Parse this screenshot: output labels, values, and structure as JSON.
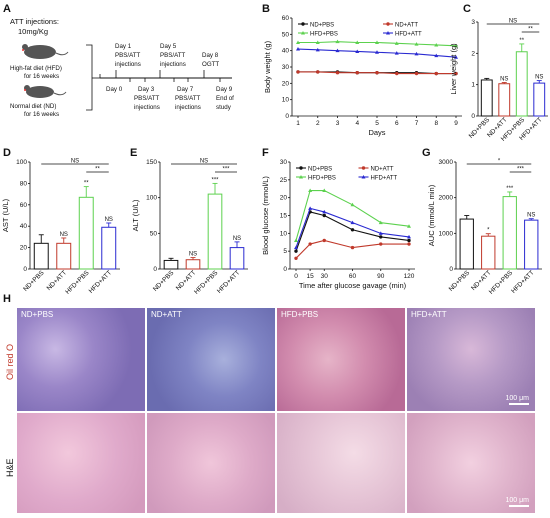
{
  "panelA": {
    "letter": "A",
    "injection_title": "ATT injections:",
    "dose": "10mg/Kg",
    "hfd_line1": "High-fat diet (HFD)",
    "hfd_line2": "for 16 weeks",
    "nd_line1": "Normal diet (ND)",
    "nd_line2": "for 16 weeks",
    "day1": [
      "Day 1",
      "PBS/ATT",
      "injections"
    ],
    "day5": [
      "Day 5",
      "PBS/ATT",
      "injections"
    ],
    "day8": [
      "Day 8",
      "OGTT"
    ],
    "day0": "Day 0",
    "day3": [
      "Day 3",
      "PBS/ATT",
      "injections"
    ],
    "day7": [
      "Day 7",
      "PBS/ATT",
      "injections"
    ],
    "day9": [
      "Day 9",
      "End of",
      "study"
    ]
  },
  "colors": {
    "nd_pbs": "#111111",
    "nd_att": "#c0392b",
    "hfd_pbs": "#5cd14e",
    "hfd_att": "#2a2ad1"
  },
  "chart_data": [
    {
      "panel": "B",
      "type": "line",
      "xlabel": "Days",
      "ylabel": "Body weight (g)",
      "x": [
        1,
        2,
        3,
        4,
        5,
        6,
        7,
        8,
        9
      ],
      "ylim": [
        0,
        60
      ],
      "yticks": [
        0,
        10,
        20,
        30,
        40,
        50,
        60
      ],
      "series": [
        {
          "name": "ND+PBS",
          "values": [
            27,
            27,
            27,
            26.5,
            26.5,
            26.5,
            26.5,
            26,
            26
          ]
        },
        {
          "name": "ND+ATT",
          "values": [
            27,
            27,
            26.5,
            26.5,
            26.5,
            26,
            26,
            26,
            26
          ]
        },
        {
          "name": "HFD+PBS",
          "values": [
            45,
            45,
            45.5,
            45,
            45,
            44.5,
            44,
            43.5,
            43
          ]
        },
        {
          "name": "HFD+ATT",
          "values": [
            41,
            40.5,
            40,
            39.5,
            39,
            38.5,
            38,
            37,
            36
          ]
        }
      ]
    },
    {
      "panel": "C",
      "type": "bar",
      "ylabel": "Liver weight (g)",
      "categories": [
        "ND+PBS",
        "ND+ATT",
        "HFD+PBS",
        "HFD+ATT"
      ],
      "values": [
        1.15,
        1.03,
        2.05,
        1.05
      ],
      "errors": [
        0.05,
        0.04,
        0.25,
        0.08
      ],
      "ylim": [
        0,
        3
      ],
      "yticks": [
        0,
        1,
        2,
        3
      ],
      "marks": [
        "",
        "NS",
        "**",
        "NS"
      ],
      "brackets": [
        {
          "label": "NS"
        },
        {
          "label": "**"
        }
      ]
    },
    {
      "panel": "D",
      "type": "bar",
      "ylabel": "AST (U/L)",
      "categories": [
        "ND+PBS",
        "ND+ATT",
        "HFD+PBS",
        "HFD+ATT"
      ],
      "values": [
        24,
        24,
        67,
        39
      ],
      "errors": [
        8,
        5,
        10,
        4
      ],
      "ylim": [
        0,
        100
      ],
      "yticks": [
        0,
        20,
        40,
        60,
        80,
        100
      ],
      "marks": [
        "",
        "NS",
        "**",
        "NS"
      ],
      "brackets": [
        {
          "label": "NS"
        },
        {
          "label": "**"
        }
      ]
    },
    {
      "panel": "E",
      "type": "bar",
      "ylabel": "ALT (U/L)",
      "categories": [
        "ND+PBS",
        "ND+ATT",
        "HFD+PBS",
        "HFD+ATT"
      ],
      "values": [
        12,
        13,
        105,
        30
      ],
      "errors": [
        3,
        3,
        15,
        8
      ],
      "ylim": [
        0,
        150
      ],
      "yticks": [
        0,
        50,
        100,
        150
      ],
      "marks": [
        "",
        "NS",
        "***",
        "NS"
      ],
      "brackets": [
        {
          "label": "NS"
        },
        {
          "label": "***"
        }
      ]
    },
    {
      "panel": "F",
      "type": "line",
      "xlabel": "Time after glucose gavage (min)",
      "ylabel": "Blood glucose (mmol/L)",
      "x": [
        0,
        15,
        30,
        60,
        90,
        120
      ],
      "ylim": [
        0,
        30
      ],
      "yticks": [
        0,
        5,
        10,
        15,
        20,
        25,
        30
      ],
      "series": [
        {
          "name": "ND+PBS",
          "values": [
            5,
            16,
            15,
            11,
            9,
            8
          ]
        },
        {
          "name": "ND+ATT",
          "values": [
            3,
            7,
            8,
            6,
            7,
            7
          ]
        },
        {
          "name": "HFD+PBS",
          "values": [
            8,
            22,
            22,
            18,
            13,
            12
          ]
        },
        {
          "name": "HFD+ATT",
          "values": [
            6,
            17,
            16,
            13,
            10,
            9
          ]
        }
      ]
    },
    {
      "panel": "G",
      "type": "bar",
      "ylabel": "AUC (mmol/L min)",
      "categories": [
        "ND+PBS",
        "ND+ATT",
        "HFD+PBS",
        "HFD+ATT"
      ],
      "values": [
        1400,
        920,
        2030,
        1370
      ],
      "errors": [
        100,
        70,
        130,
        40
      ],
      "ylim": [
        0,
        3000
      ],
      "yticks": [
        0,
        1000,
        2000,
        3000
      ],
      "marks": [
        "",
        "*",
        "***",
        "NS"
      ],
      "brackets": [
        {
          "label": "*"
        },
        {
          "label": "***"
        }
      ]
    }
  ],
  "panelH": {
    "letter": "H",
    "row1_label": "Oil red O",
    "row2_label": "H&E",
    "columns": [
      "ND+PBS",
      "ND+ATT",
      "HFD+PBS",
      "HFD+ATT"
    ],
    "scale1": "100 μm",
    "scale2": "100 μm"
  }
}
